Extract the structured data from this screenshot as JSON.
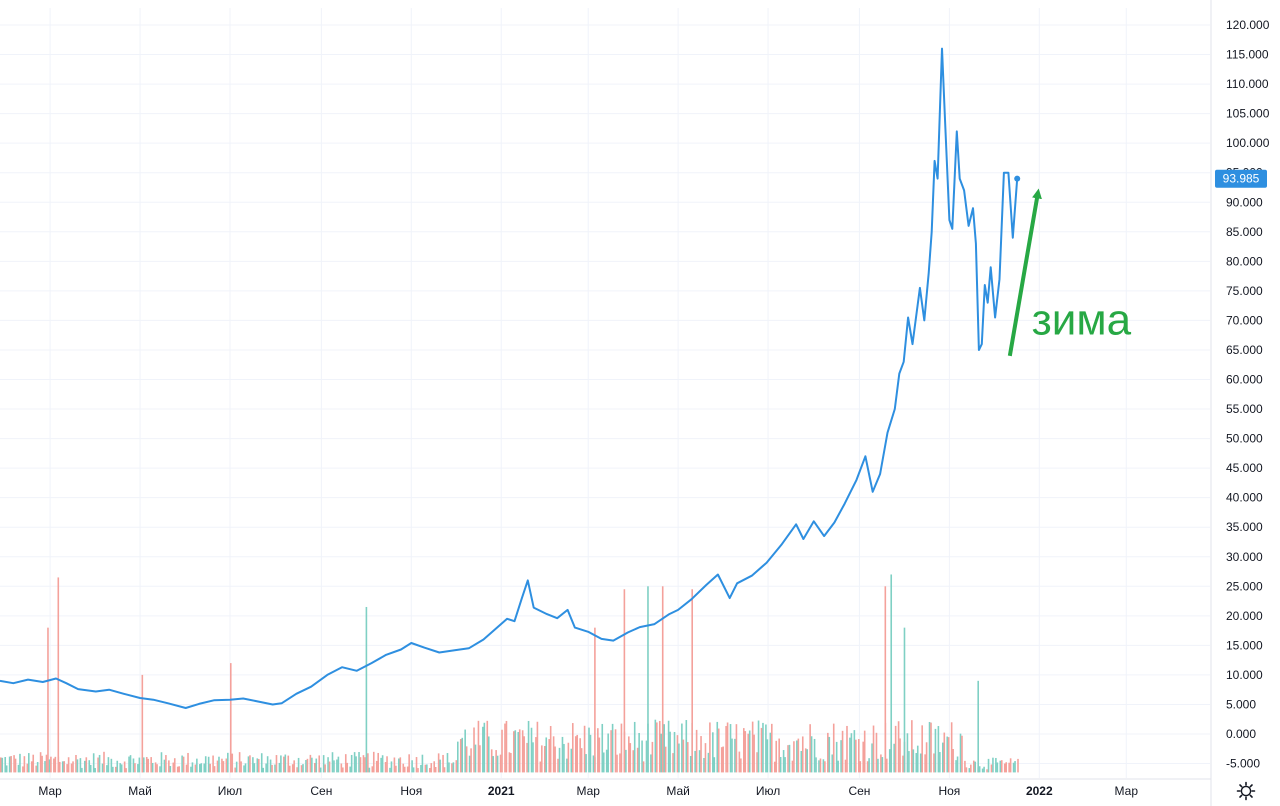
{
  "chart_data": {
    "type": "line",
    "title": "",
    "xlabel": "",
    "ylabel": "",
    "ylim": [
      -6500,
      124000
    ],
    "grid": true,
    "y_ticks": [
      -5000,
      0,
      5000,
      10000,
      15000,
      20000,
      25000,
      30000,
      35000,
      40000,
      45000,
      50000,
      55000,
      60000,
      65000,
      70000,
      75000,
      80000,
      85000,
      90000,
      95000,
      100000,
      105000,
      110000,
      115000,
      120000
    ],
    "y_tick_labels": [
      "-5.000",
      "0.000",
      "5.000",
      "10.000",
      "15.000",
      "20.000",
      "25.000",
      "30.000",
      "35.000",
      "40.000",
      "45.000",
      "50.000",
      "55.000",
      "60.000",
      "65.000",
      "70.000",
      "75.000",
      "80.000",
      "85.000",
      "90.000",
      "95.000",
      "100.000",
      "105.000",
      "110.000",
      "115.000",
      "120.000"
    ],
    "x_range": [
      "2020-01-27",
      "2022-04-20"
    ],
    "x_ticks": [
      {
        "date": "2020-03-01",
        "label": "Мар"
      },
      {
        "date": "2020-05-01",
        "label": "Май"
      },
      {
        "date": "2020-07-01",
        "label": "Июл"
      },
      {
        "date": "2020-09-01",
        "label": "Сен"
      },
      {
        "date": "2020-11-01",
        "label": "Ноя"
      },
      {
        "date": "2021-01-01",
        "label": "2021",
        "bold": true
      },
      {
        "date": "2021-03-01",
        "label": "Мар"
      },
      {
        "date": "2021-05-01",
        "label": "Май"
      },
      {
        "date": "2021-07-01",
        "label": "Июл"
      },
      {
        "date": "2021-09-01",
        "label": "Сен"
      },
      {
        "date": "2021-11-01",
        "label": "Ноя"
      },
      {
        "date": "2022-01-01",
        "label": "2022",
        "bold": true
      },
      {
        "date": "2022-03-01",
        "label": "Мар"
      }
    ],
    "series": [
      {
        "color": "#2e8fe0",
        "points": [
          [
            "2020-01-27",
            9000
          ],
          [
            "2020-02-05",
            8600
          ],
          [
            "2020-02-15",
            9200
          ],
          [
            "2020-02-25",
            8800
          ],
          [
            "2020-03-05",
            9400
          ],
          [
            "2020-03-12",
            8600
          ],
          [
            "2020-03-20",
            7600
          ],
          [
            "2020-04-01",
            7200
          ],
          [
            "2020-04-10",
            7500
          ],
          [
            "2020-04-20",
            6800
          ],
          [
            "2020-05-01",
            6100
          ],
          [
            "2020-05-10",
            5800
          ],
          [
            "2020-05-20",
            5200
          ],
          [
            "2020-06-01",
            4400
          ],
          [
            "2020-06-10",
            5100
          ],
          [
            "2020-06-20",
            5700
          ],
          [
            "2020-07-01",
            5800
          ],
          [
            "2020-07-10",
            6000
          ],
          [
            "2020-07-20",
            5500
          ],
          [
            "2020-07-30",
            5000
          ],
          [
            "2020-08-05",
            5200
          ],
          [
            "2020-08-15",
            6800
          ],
          [
            "2020-08-25",
            8000
          ],
          [
            "2020-09-05",
            10000
          ],
          [
            "2020-09-15",
            11300
          ],
          [
            "2020-09-25",
            10700
          ],
          [
            "2020-10-05",
            12000
          ],
          [
            "2020-10-15",
            13400
          ],
          [
            "2020-10-25",
            14300
          ],
          [
            "2020-11-01",
            15400
          ],
          [
            "2020-11-10",
            14600
          ],
          [
            "2020-11-20",
            13800
          ],
          [
            "2020-12-01",
            14200
          ],
          [
            "2020-12-10",
            14500
          ],
          [
            "2020-12-20",
            16000
          ],
          [
            "2020-12-30",
            18200
          ],
          [
            "2021-01-05",
            19500
          ],
          [
            "2021-01-10",
            19100
          ],
          [
            "2021-01-15",
            23000
          ],
          [
            "2021-01-19",
            26000
          ],
          [
            "2021-01-23",
            21400
          ],
          [
            "2021-02-01",
            20300
          ],
          [
            "2021-02-08",
            19600
          ],
          [
            "2021-02-15",
            21000
          ],
          [
            "2021-02-20",
            18000
          ],
          [
            "2021-03-01",
            17300
          ],
          [
            "2021-03-10",
            16100
          ],
          [
            "2021-03-18",
            15800
          ],
          [
            "2021-03-28",
            17200
          ],
          [
            "2021-04-05",
            18100
          ],
          [
            "2021-04-15",
            18600
          ],
          [
            "2021-04-25",
            20300
          ],
          [
            "2021-05-01",
            21000
          ],
          [
            "2021-05-10",
            22800
          ],
          [
            "2021-05-20",
            25200
          ],
          [
            "2021-05-28",
            27000
          ],
          [
            "2021-06-05",
            23000
          ],
          [
            "2021-06-10",
            25500
          ],
          [
            "2021-06-20",
            26800
          ],
          [
            "2021-06-30",
            29000
          ],
          [
            "2021-07-10",
            32000
          ],
          [
            "2021-07-20",
            35500
          ],
          [
            "2021-07-25",
            33000
          ],
          [
            "2021-08-01",
            36000
          ],
          [
            "2021-08-08",
            33500
          ],
          [
            "2021-08-15",
            35800
          ],
          [
            "2021-08-22",
            39000
          ],
          [
            "2021-08-30",
            43000
          ],
          [
            "2021-09-05",
            47000
          ],
          [
            "2021-09-10",
            41000
          ],
          [
            "2021-09-15",
            44000
          ],
          [
            "2021-09-20",
            51000
          ],
          [
            "2021-09-25",
            55000
          ],
          [
            "2021-09-28",
            61000
          ],
          [
            "2021-10-01",
            63000
          ],
          [
            "2021-10-04",
            70500
          ],
          [
            "2021-10-07",
            66000
          ],
          [
            "2021-10-12",
            75500
          ],
          [
            "2021-10-15",
            70000
          ],
          [
            "2021-10-18",
            78000
          ],
          [
            "2021-10-20",
            85000
          ],
          [
            "2021-10-22",
            97000
          ],
          [
            "2021-10-24",
            94000
          ],
          [
            "2021-10-27",
            116000
          ],
          [
            "2021-10-29",
            104000
          ],
          [
            "2021-11-01",
            87000
          ],
          [
            "2021-11-03",
            85500
          ],
          [
            "2021-11-06",
            102000
          ],
          [
            "2021-11-08",
            94000
          ],
          [
            "2021-11-11",
            92000
          ],
          [
            "2021-11-14",
            86000
          ],
          [
            "2021-11-17",
            89000
          ],
          [
            "2021-11-19",
            83000
          ],
          [
            "2021-11-21",
            65000
          ],
          [
            "2021-11-23",
            66000
          ],
          [
            "2021-11-25",
            76000
          ],
          [
            "2021-11-27",
            73000
          ],
          [
            "2021-11-29",
            79000
          ],
          [
            "2021-12-02",
            70500
          ],
          [
            "2021-12-05",
            77000
          ],
          [
            "2021-12-08",
            95000
          ],
          [
            "2021-12-11",
            95000
          ],
          [
            "2021-12-14",
            84000
          ],
          [
            "2021-12-17",
            94000
          ]
        ]
      }
    ],
    "last_value": 93985,
    "last_value_label": "93.985",
    "volume": {
      "up_color": "#7fd0c4",
      "down_color": "#f4a19b",
      "baseline": -6500,
      "spikes": [
        [
          "2020-02-28",
          18000,
          "down"
        ],
        [
          "2020-03-06",
          26500,
          "down"
        ],
        [
          "2020-05-02",
          10000,
          "down"
        ],
        [
          "2020-07-01",
          12000,
          "down"
        ],
        [
          "2020-10-01",
          21500,
          "up"
        ],
        [
          "2021-03-05",
          18000,
          "down"
        ],
        [
          "2021-03-25",
          24500,
          "down"
        ],
        [
          "2021-04-10",
          25000,
          "up"
        ],
        [
          "2021-04-20",
          25000,
          "down"
        ],
        [
          "2021-05-10",
          24500,
          "down"
        ],
        [
          "2021-09-18",
          25000,
          "down"
        ],
        [
          "2021-09-22",
          27000,
          "up"
        ],
        [
          "2021-10-01",
          18000,
          "up"
        ],
        [
          "2021-11-20",
          9000,
          "up"
        ]
      ]
    },
    "annotations": [
      {
        "type": "text",
        "text": "зима",
        "x": "2021-12-20",
        "y": 70000
      },
      {
        "type": "arrow",
        "from": [
          "2021-12-12",
          64000
        ],
        "to": [
          "2021-12-31",
          91500
        ],
        "color": "#27a844"
      }
    ]
  },
  "annotation_text": "зима"
}
